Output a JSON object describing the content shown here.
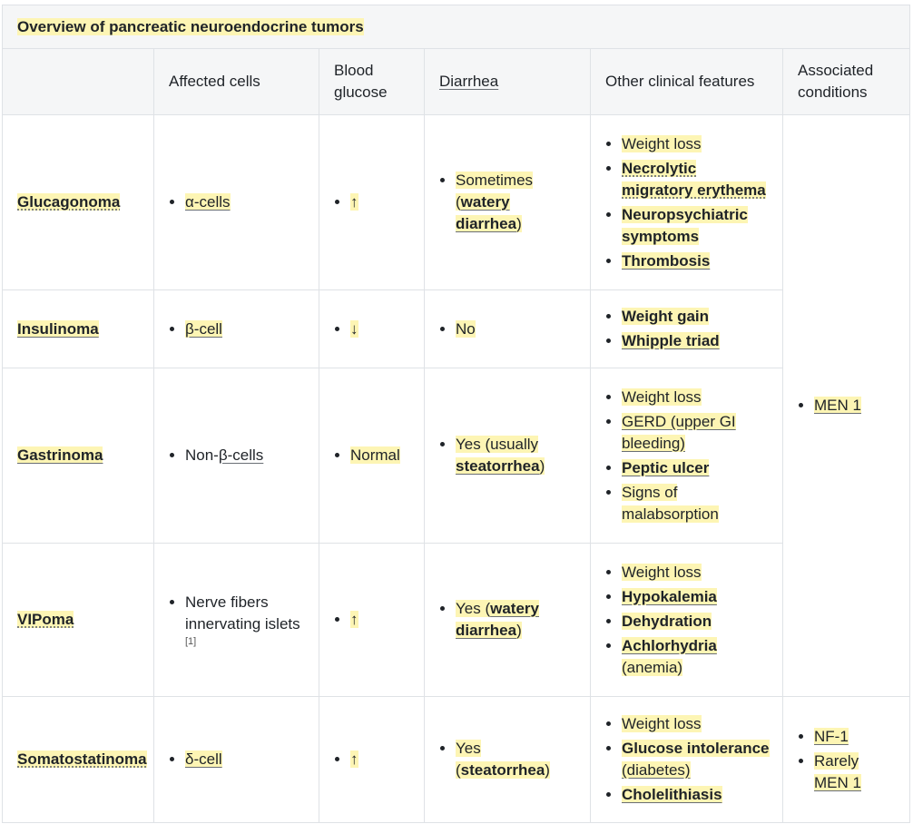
{
  "table": {
    "caption": "Overview of pancreatic neuroendocrine tumors",
    "headers": {
      "empty": "",
      "affected_cells": "Affected cells",
      "blood_glucose_1": "Blood",
      "blood_glucose_2": "glucose",
      "diarrhea": "Diarrhea",
      "other_features": "Other clinical features",
      "assoc_1": "Associated",
      "assoc_2": "conditions"
    },
    "rows": {
      "glucagonoma": {
        "name": "Glucagonoma",
        "cells": "α-cells",
        "glucose": "↑",
        "diarrhea_a": "Sometimes",
        "diarrhea_b": "(",
        "diarrhea_c": "watery diarrhea",
        "diarrhea_d": ")",
        "features": [
          "Weight loss",
          "Necrolytic migratory erythema",
          "Neuropsychiatric symptoms",
          "Thrombosis"
        ]
      },
      "insulinoma": {
        "name": "Insulinoma",
        "cells": "β-cell",
        "glucose": "↓",
        "diarrhea": "No",
        "features": [
          "Weight gain",
          "Whipple triad"
        ]
      },
      "gastrinoma": {
        "name": "Gastrinoma",
        "cells_a": "Non-",
        "cells_b": "β-cells",
        "glucose": "Normal",
        "diarrhea_a": "Yes (usually",
        "diarrhea_b": "steatorrhea",
        "diarrhea_c": ")",
        "features": [
          "Weight loss",
          "GERD (upper GI bleeding)",
          "Peptic ulcer",
          "Signs of malabsorption"
        ]
      },
      "vipoma": {
        "name": "VIPoma",
        "cells": "Nerve fibers innervating islets",
        "cells_ref": "[1]",
        "glucose": "↑",
        "diarrhea_a": "Yes (",
        "diarrhea_b": "watery diarrhea",
        "diarrhea_c": ")",
        "features": [
          "Weight loss",
          "Hypokalemia",
          "Dehydration",
          "Achlorhydria",
          "(anemia)"
        ]
      },
      "somatostatinoma": {
        "name": "Somatostatinoma",
        "cells": "δ-cell",
        "glucose": "↑",
        "diarrhea_a": "Yes (",
        "diarrhea_b": "steatorrhea",
        "diarrhea_c": ")",
        "features": [
          "Weight loss",
          "Glucose intolerance",
          "(diabetes)",
          "Cholelithiasis"
        ],
        "assoc": [
          "NF-1",
          "Rarely",
          "MEN 1"
        ]
      }
    },
    "assoc_shared": "MEN 1"
  },
  "colors": {
    "highlight": "#fdf5b4",
    "header_bg": "#f5f6f7",
    "border": "#dfe2e6"
  }
}
